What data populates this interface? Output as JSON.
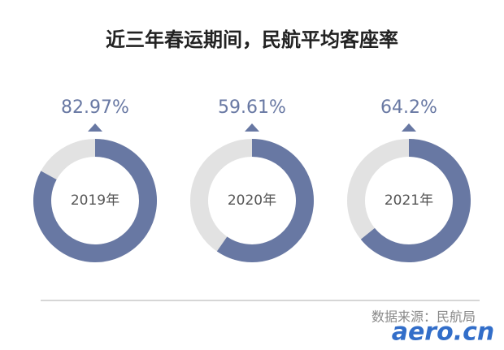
{
  "chart_data": {
    "type": "donut",
    "title": "近三年春运期间，民航平均客座率",
    "categories": [
      "2019年",
      "2020年",
      "2021年"
    ],
    "values": [
      82.97,
      59.61,
      64.2
    ],
    "value_labels": [
      "82.97%",
      "59.61%",
      "64.2%"
    ],
    "color": "#6878a3",
    "track_color": "#e2e2e2"
  },
  "source": "数据来源：民航局",
  "watermark": "aero.cn"
}
